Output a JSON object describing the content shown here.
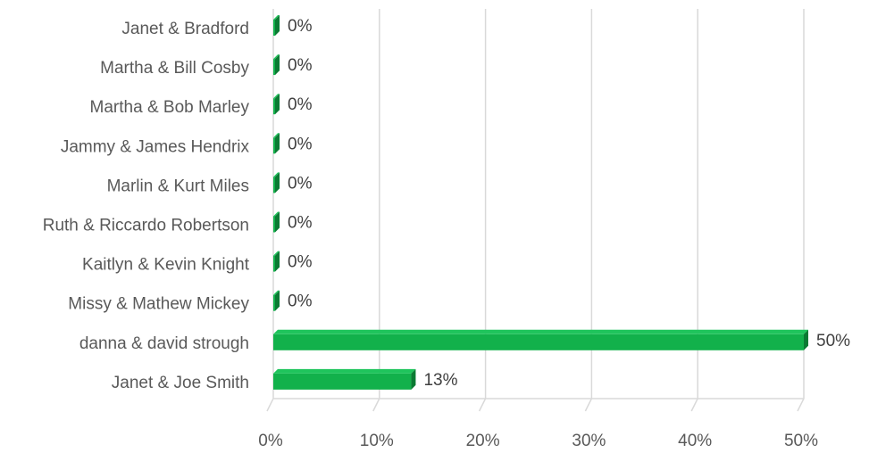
{
  "chart_data": {
    "type": "bar",
    "orientation": "horizontal",
    "categories": [
      "Janet &  Bradford",
      "Martha & Bill Cosby",
      "Martha & Bob Marley",
      "Jammy & James Hendrix",
      "Marlin & Kurt Miles",
      "Ruth & Riccardo Robertson",
      "Kaitlyn & Kevin Knight",
      "Missy & Mathew Mickey",
      "danna & david strough",
      "Janet & Joe Smith"
    ],
    "values": [
      0,
      0,
      0,
      0,
      0,
      0,
      0,
      0,
      50,
      13
    ],
    "data_labels": [
      "0%",
      "0%",
      "0%",
      "0%",
      "0%",
      "0%",
      "0%",
      "0%",
      "50%",
      "13%"
    ],
    "x_ticks": [
      0,
      10,
      20,
      30,
      40,
      50
    ],
    "x_tick_labels": [
      "0%",
      "10%",
      "20%",
      "30%",
      "40%",
      "50%"
    ],
    "xlim": [
      0,
      50
    ],
    "grid": true,
    "legend": "none",
    "colors": {
      "bar_face": "#12b14b",
      "bar_side": "#0b7a33",
      "bar_top": "#1fc45c"
    }
  }
}
